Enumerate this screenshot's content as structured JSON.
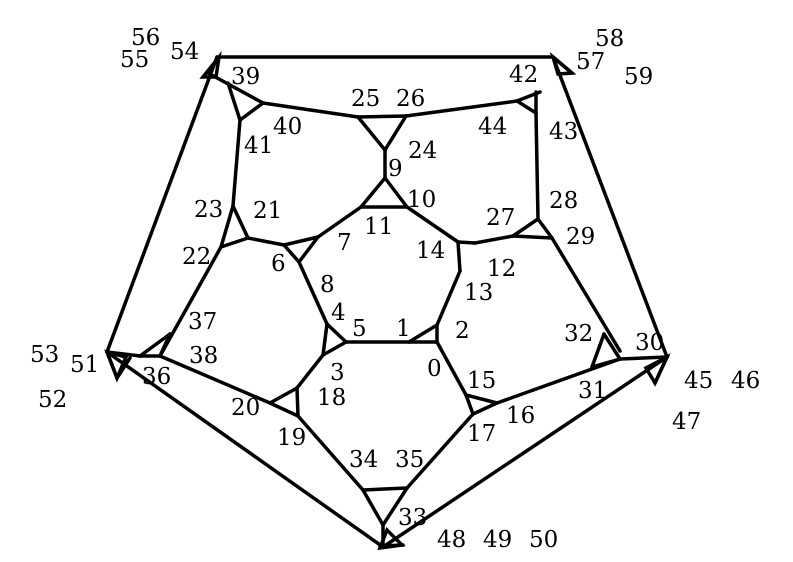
{
  "graph": {
    "stroke_color": "#000000",
    "background": "#ffffff",
    "vertex_labels": [
      "0",
      "1",
      "2",
      "3",
      "4",
      "5",
      "6",
      "7",
      "8",
      "9",
      "10",
      "11",
      "12",
      "13",
      "14",
      "15",
      "16",
      "17",
      "18",
      "19",
      "20",
      "21",
      "22",
      "23",
      "24",
      "25",
      "26",
      "27",
      "28",
      "29",
      "30",
      "31",
      "32",
      "33",
      "34",
      "35",
      "36",
      "37",
      "38",
      "39",
      "40",
      "41",
      "42",
      "43",
      "44",
      "45",
      "46",
      "47",
      "48",
      "49",
      "50",
      "51",
      "52",
      "53",
      "54",
      "55",
      "56",
      "57",
      "58",
      "59"
    ]
  }
}
